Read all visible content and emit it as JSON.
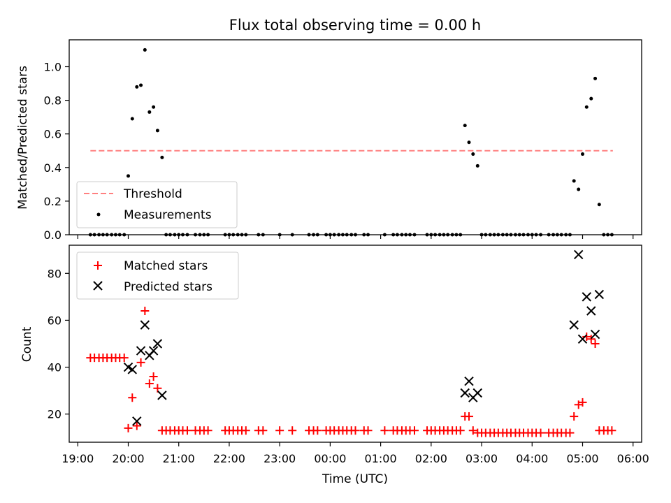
{
  "chart_data": [
    {
      "type": "scatter",
      "title": "Flux total observing time = 0.00 h",
      "ylabel": "Matched/Predicted stars",
      "xlabel": "",
      "ylim": [
        0,
        1.16
      ],
      "yticks": [
        0.0,
        0.2,
        0.4,
        0.6,
        0.8,
        1.0
      ],
      "ytick_labels": [
        "0.0",
        "0.2",
        "0.4",
        "0.6",
        "0.8",
        "1.0"
      ],
      "threshold": {
        "name": "Threshold",
        "value": 0.5,
        "x_start": 19.25,
        "x_end": 29.6,
        "color": "#ff8080"
      },
      "legend": {
        "placement": "lower-left",
        "entries": [
          "Threshold",
          "Measurements"
        ]
      },
      "series": [
        {
          "name": "Measurements",
          "color": "#000000",
          "points": [
            [
              19.25,
              0
            ],
            [
              19.33,
              0
            ],
            [
              19.42,
              0
            ],
            [
              19.5,
              0
            ],
            [
              19.58,
              0
            ],
            [
              19.67,
              0
            ],
            [
              19.75,
              0
            ],
            [
              19.83,
              0
            ],
            [
              19.92,
              0
            ],
            [
              20.0,
              0.35
            ],
            [
              20.08,
              0.69
            ],
            [
              20.17,
              0.88
            ],
            [
              20.25,
              0.89
            ],
            [
              20.33,
              1.1
            ],
            [
              20.42,
              0.73
            ],
            [
              20.5,
              0.76
            ],
            [
              20.58,
              0.62
            ],
            [
              20.67,
              0.46
            ],
            [
              20.75,
              0
            ],
            [
              20.83,
              0
            ],
            [
              20.92,
              0
            ],
            [
              21.0,
              0
            ],
            [
              21.08,
              0
            ],
            [
              21.17,
              0
            ],
            [
              21.33,
              0
            ],
            [
              21.42,
              0
            ],
            [
              21.5,
              0
            ],
            [
              21.58,
              0
            ],
            [
              21.92,
              0
            ],
            [
              22.0,
              0
            ],
            [
              22.08,
              0
            ],
            [
              22.17,
              0
            ],
            [
              22.25,
              0
            ],
            [
              22.33,
              0
            ],
            [
              22.58,
              0
            ],
            [
              22.67,
              0
            ],
            [
              23.0,
              0
            ],
            [
              23.25,
              0
            ],
            [
              23.58,
              0
            ],
            [
              23.67,
              0
            ],
            [
              23.75,
              0
            ],
            [
              23.92,
              0
            ],
            [
              24.0,
              0
            ],
            [
              24.08,
              0
            ],
            [
              24.17,
              0
            ],
            [
              24.25,
              0
            ],
            [
              24.33,
              0
            ],
            [
              24.42,
              0
            ],
            [
              24.5,
              0
            ],
            [
              24.67,
              0
            ],
            [
              24.75,
              0
            ],
            [
              25.08,
              0
            ],
            [
              25.25,
              0
            ],
            [
              25.33,
              0
            ],
            [
              25.42,
              0
            ],
            [
              25.5,
              0
            ],
            [
              25.58,
              0
            ],
            [
              25.67,
              0
            ],
            [
              25.92,
              0
            ],
            [
              26.0,
              0
            ],
            [
              26.08,
              0
            ],
            [
              26.17,
              0
            ],
            [
              26.25,
              0
            ],
            [
              26.33,
              0
            ],
            [
              26.42,
              0
            ],
            [
              26.5,
              0
            ],
            [
              26.58,
              0
            ],
            [
              26.67,
              0.65
            ],
            [
              26.75,
              0.55
            ],
            [
              26.83,
              0.48
            ],
            [
              26.92,
              0.41
            ],
            [
              27.0,
              0
            ],
            [
              27.08,
              0
            ],
            [
              27.17,
              0
            ],
            [
              27.25,
              0
            ],
            [
              27.33,
              0
            ],
            [
              27.42,
              0
            ],
            [
              27.5,
              0
            ],
            [
              27.58,
              0
            ],
            [
              27.67,
              0
            ],
            [
              27.75,
              0
            ],
            [
              27.83,
              0
            ],
            [
              27.92,
              0
            ],
            [
              28.0,
              0
            ],
            [
              28.08,
              0
            ],
            [
              28.17,
              0
            ],
            [
              28.33,
              0
            ],
            [
              28.42,
              0
            ],
            [
              28.5,
              0
            ],
            [
              28.58,
              0
            ],
            [
              28.67,
              0
            ],
            [
              28.75,
              0
            ],
            [
              28.83,
              0.32
            ],
            [
              28.92,
              0.27
            ],
            [
              29.0,
              0.48
            ],
            [
              29.08,
              0.76
            ],
            [
              29.17,
              0.81
            ],
            [
              29.25,
              0.93
            ],
            [
              29.33,
              0.18
            ],
            [
              29.42,
              0
            ],
            [
              29.5,
              0
            ],
            [
              29.58,
              0
            ]
          ]
        }
      ]
    },
    {
      "type": "scatter",
      "title": "",
      "ylabel": "Count",
      "xlabel": "Time (UTC)",
      "ylim": [
        8,
        92
      ],
      "yticks": [
        20,
        40,
        60,
        80
      ],
      "ytick_labels": [
        "20",
        "40",
        "60",
        "80"
      ],
      "xlim": [
        18.83,
        30.17
      ],
      "xticks": [
        19,
        20,
        21,
        22,
        23,
        24,
        25,
        26,
        27,
        28,
        29,
        30
      ],
      "xtick_labels": [
        "19:00",
        "20:00",
        "21:00",
        "22:00",
        "23:00",
        "00:00",
        "01:00",
        "02:00",
        "03:00",
        "04:00",
        "05:00",
        "06:00"
      ],
      "legend": {
        "placement": "upper-left",
        "entries": [
          "Matched stars",
          "Predicted stars"
        ]
      },
      "series": [
        {
          "name": "Matched stars",
          "color": "#ff0000",
          "marker": "plus",
          "points": [
            [
              19.25,
              44
            ],
            [
              19.33,
              44
            ],
            [
              19.42,
              44
            ],
            [
              19.5,
              44
            ],
            [
              19.58,
              44
            ],
            [
              19.67,
              44
            ],
            [
              19.75,
              44
            ],
            [
              19.83,
              44
            ],
            [
              19.92,
              44
            ],
            [
              20.0,
              14
            ],
            [
              20.08,
              27
            ],
            [
              20.17,
              15
            ],
            [
              20.25,
              42
            ],
            [
              20.33,
              64
            ],
            [
              20.42,
              33
            ],
            [
              20.5,
              36
            ],
            [
              20.58,
              31
            ],
            [
              20.67,
              13
            ],
            [
              20.75,
              13
            ],
            [
              20.83,
              13
            ],
            [
              20.92,
              13
            ],
            [
              21.0,
              13
            ],
            [
              21.08,
              13
            ],
            [
              21.17,
              13
            ],
            [
              21.33,
              13
            ],
            [
              21.42,
              13
            ],
            [
              21.5,
              13
            ],
            [
              21.58,
              13
            ],
            [
              21.92,
              13
            ],
            [
              22.0,
              13
            ],
            [
              22.08,
              13
            ],
            [
              22.17,
              13
            ],
            [
              22.25,
              13
            ],
            [
              22.33,
              13
            ],
            [
              22.58,
              13
            ],
            [
              22.67,
              13
            ],
            [
              23.0,
              13
            ],
            [
              23.25,
              13
            ],
            [
              23.58,
              13
            ],
            [
              23.67,
              13
            ],
            [
              23.75,
              13
            ],
            [
              23.92,
              13
            ],
            [
              24.0,
              13
            ],
            [
              24.08,
              13
            ],
            [
              24.17,
              13
            ],
            [
              24.25,
              13
            ],
            [
              24.33,
              13
            ],
            [
              24.42,
              13
            ],
            [
              24.5,
              13
            ],
            [
              24.67,
              13
            ],
            [
              24.75,
              13
            ],
            [
              25.08,
              13
            ],
            [
              25.25,
              13
            ],
            [
              25.33,
              13
            ],
            [
              25.42,
              13
            ],
            [
              25.5,
              13
            ],
            [
              25.58,
              13
            ],
            [
              25.67,
              13
            ],
            [
              25.92,
              13
            ],
            [
              26.0,
              13
            ],
            [
              26.08,
              13
            ],
            [
              26.17,
              13
            ],
            [
              26.25,
              13
            ],
            [
              26.33,
              13
            ],
            [
              26.42,
              13
            ],
            [
              26.5,
              13
            ],
            [
              26.58,
              13
            ],
            [
              26.67,
              19
            ],
            [
              26.75,
              19
            ],
            [
              26.83,
              13
            ],
            [
              26.92,
              12
            ],
            [
              27.0,
              12
            ],
            [
              27.08,
              12
            ],
            [
              27.17,
              12
            ],
            [
              27.25,
              12
            ],
            [
              27.33,
              12
            ],
            [
              27.42,
              12
            ],
            [
              27.5,
              12
            ],
            [
              27.58,
              12
            ],
            [
              27.67,
              12
            ],
            [
              27.75,
              12
            ],
            [
              27.83,
              12
            ],
            [
              27.92,
              12
            ],
            [
              28.0,
              12
            ],
            [
              28.08,
              12
            ],
            [
              28.17,
              12
            ],
            [
              28.33,
              12
            ],
            [
              28.42,
              12
            ],
            [
              28.5,
              12
            ],
            [
              28.58,
              12
            ],
            [
              28.67,
              12
            ],
            [
              28.75,
              12
            ],
            [
              28.83,
              19
            ],
            [
              28.92,
              24
            ],
            [
              29.0,
              25
            ],
            [
              29.08,
              53
            ],
            [
              29.17,
              52
            ],
            [
              29.25,
              50
            ],
            [
              29.33,
              13
            ],
            [
              29.42,
              13
            ],
            [
              29.5,
              13
            ],
            [
              29.58,
              13
            ]
          ]
        },
        {
          "name": "Predicted stars",
          "color": "#000000",
          "marker": "cross",
          "points": [
            [
              20.0,
              40
            ],
            [
              20.08,
              39
            ],
            [
              20.17,
              17
            ],
            [
              20.25,
              47
            ],
            [
              20.33,
              58
            ],
            [
              20.42,
              45
            ],
            [
              20.5,
              47
            ],
            [
              20.58,
              50
            ],
            [
              20.67,
              28
            ],
            [
              26.67,
              29
            ],
            [
              26.75,
              34
            ],
            [
              26.83,
              27
            ],
            [
              26.92,
              29
            ],
            [
              28.83,
              58
            ],
            [
              28.92,
              88
            ],
            [
              29.0,
              52
            ],
            [
              29.08,
              70
            ],
            [
              29.17,
              64
            ],
            [
              29.25,
              54
            ],
            [
              29.33,
              71
            ]
          ]
        }
      ]
    }
  ]
}
